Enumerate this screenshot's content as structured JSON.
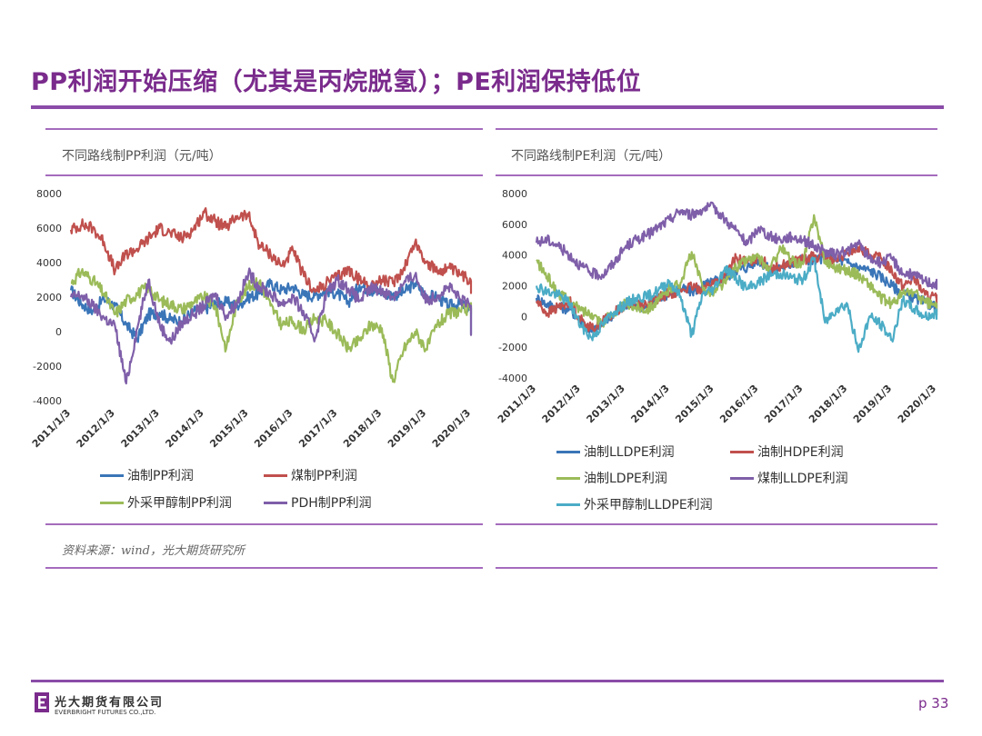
{
  "page": {
    "title": "PP利润开始压缩（尤其是丙烷脱氢）；PE利润保持低位",
    "source": "资料来源：wind，光大期货研究所",
    "page_number": "p 33",
    "company_cn": "光大期货有限公司",
    "company_en": "EVERBRIGHT FUTURES CO.,LTD.",
    "accent_color": "#7a2b8c"
  },
  "chart_data": [
    {
      "type": "line",
      "title": "不同路线制PP利润（元/吨）",
      "ylim": [
        -4000,
        8000
      ],
      "yticks": [
        -4000,
        -2000,
        0,
        2000,
        4000,
        6000,
        8000
      ],
      "xlim": [
        "2011/1/3",
        "2020/1/3"
      ],
      "xticks": [
        "2011/1/3",
        "2012/1/3",
        "2013/1/3",
        "2014/1/3",
        "2015/1/3",
        "2016/1/3",
        "2017/1/3",
        "2018/1/3",
        "2019/1/3",
        "2020/1/3"
      ],
      "legend_position": "bottom",
      "series": [
        {
          "name": "油制PP利润",
          "color": "#3a75b8",
          "x": [
            "2011/1/3",
            "2011/4/1",
            "2011/7/1",
            "2011/10/1",
            "2012/1/1",
            "2012/4/1",
            "2012/7/1",
            "2012/10/1",
            "2013/1/1",
            "2013/4/1",
            "2013/7/1",
            "2013/10/1",
            "2014/1/1",
            "2014/4/1",
            "2014/7/1",
            "2014/10/1",
            "2015/1/1",
            "2015/4/1",
            "2015/7/1",
            "2015/10/1",
            "2016/1/1",
            "2016/4/1",
            "2016/7/1",
            "2016/10/1",
            "2017/1/1",
            "2017/4/1",
            "2017/7/1",
            "2017/10/1",
            "2018/1/1",
            "2018/4/1",
            "2018/7/1",
            "2018/10/1",
            "2019/1/1",
            "2019/4/1",
            "2019/7/1",
            "2019/10/1",
            "2020/1/1",
            "2020/2/1"
          ],
          "values": [
            2400,
            1600,
            1200,
            1900,
            1500,
            400,
            -400,
            1000,
            1100,
            700,
            600,
            1200,
            1300,
            1600,
            1700,
            1500,
            2000,
            2200,
            2800,
            2400,
            2600,
            2100,
            2100,
            2400,
            2200,
            1700,
            2700,
            2400,
            2300,
            2100,
            2300,
            2800,
            2100,
            2000,
            1500,
            1600,
            1400,
            -100
          ]
        },
        {
          "name": "煤制PP利润",
          "color": "#c0504d",
          "x": [
            "2011/1/3",
            "2011/4/1",
            "2011/7/1",
            "2011/10/1",
            "2012/1/1",
            "2012/4/1",
            "2012/7/1",
            "2012/10/1",
            "2013/1/1",
            "2013/4/1",
            "2013/7/1",
            "2013/10/1",
            "2014/1/1",
            "2014/4/1",
            "2014/7/1",
            "2014/10/1",
            "2015/1/1",
            "2015/4/1",
            "2015/7/1",
            "2015/10/1",
            "2016/1/1",
            "2016/4/1",
            "2016/7/1",
            "2016/10/1",
            "2017/1/1",
            "2017/4/1",
            "2017/7/1",
            "2017/10/1",
            "2018/1/1",
            "2018/4/1",
            "2018/7/1",
            "2018/10/1",
            "2019/1/1",
            "2019/4/1",
            "2019/7/1",
            "2019/10/1",
            "2020/1/1",
            "2020/2/1"
          ],
          "values": [
            5900,
            6200,
            6000,
            5200,
            3500,
            4500,
            4800,
            5400,
            6000,
            5700,
            5400,
            5900,
            6900,
            6400,
            6000,
            6700,
            6700,
            5000,
            4500,
            3800,
            4700,
            3200,
            2300,
            2800,
            3200,
            3600,
            3000,
            2700,
            3000,
            2800,
            3700,
            5200,
            4000,
            3500,
            3700,
            3300,
            3000,
            2400
          ]
        },
        {
          "name": "外采甲醇制PP利润",
          "color": "#9bbb59",
          "x": [
            "2011/1/3",
            "2011/4/1",
            "2011/7/1",
            "2011/10/1",
            "2012/1/1",
            "2012/4/1",
            "2012/7/1",
            "2012/10/1",
            "2013/1/1",
            "2013/4/1",
            "2013/7/1",
            "2013/10/1",
            "2014/1/1",
            "2014/4/1",
            "2014/7/1",
            "2014/10/1",
            "2015/1/1",
            "2015/4/1",
            "2015/7/1",
            "2015/10/1",
            "2016/1/1",
            "2016/4/1",
            "2016/7/1",
            "2016/10/1",
            "2017/1/1",
            "2017/4/1",
            "2017/7/1",
            "2017/10/1",
            "2018/1/1",
            "2018/4/1",
            "2018/7/1",
            "2018/10/1",
            "2019/1/1",
            "2019/4/1",
            "2019/7/1",
            "2019/10/1",
            "2020/1/1",
            "2020/2/1"
          ],
          "values": [
            2800,
            3500,
            3000,
            2200,
            1000,
            1800,
            2200,
            2600,
            1800,
            1600,
            1300,
            1700,
            2000,
            1500,
            -1000,
            1800,
            2600,
            2900,
            1500,
            400,
            600,
            100,
            800,
            600,
            -100,
            -1000,
            -500,
            400,
            200,
            -2900,
            -1000,
            0,
            -1000,
            400,
            1000,
            1200,
            1300,
            1400
          ]
        },
        {
          "name": "PDH制PP利润",
          "color": "#7f5fa9",
          "x": [
            "2011/1/3",
            "2011/4/1",
            "2011/7/1",
            "2011/10/1",
            "2012/1/1",
            "2012/4/1",
            "2012/7/1",
            "2012/10/1",
            "2013/1/1",
            "2013/4/1",
            "2013/7/1",
            "2013/10/1",
            "2014/1/1",
            "2014/4/1",
            "2014/7/1",
            "2014/10/1",
            "2015/1/1",
            "2015/4/1",
            "2015/7/1",
            "2015/10/1",
            "2016/1/1",
            "2016/4/1",
            "2016/7/1",
            "2016/10/1",
            "2017/1/1",
            "2017/4/1",
            "2017/7/1",
            "2017/10/1",
            "2018/1/1",
            "2018/4/1",
            "2018/7/1",
            "2018/10/1",
            "2019/1/1",
            "2019/4/1",
            "2019/7/1",
            "2019/10/1",
            "2020/1/1",
            "2020/2/1"
          ],
          "values": [
            2000,
            2100,
            1500,
            800,
            300,
            -3000,
            200,
            3000,
            400,
            -600,
            500,
            1000,
            1500,
            2200,
            900,
            1700,
            3400,
            2600,
            2200,
            1600,
            2000,
            1000,
            -400,
            2200,
            3000,
            2500,
            1800,
            2500,
            2400,
            2000,
            2800,
            3300,
            1800,
            2100,
            2600,
            1900,
            1500,
            -200
          ]
        }
      ]
    },
    {
      "type": "line",
      "title": "不同路线制PE利润（元/吨）",
      "ylim": [
        -4000,
        8000
      ],
      "yticks": [
        -4000,
        -2000,
        0,
        2000,
        4000,
        6000,
        8000
      ],
      "xlim": [
        "2011/1/3",
        "2020/1/3"
      ],
      "xticks": [
        "2011/1/3",
        "2012/1/3",
        "2013/1/3",
        "2014/1/3",
        "2015/1/3",
        "2016/1/3",
        "2017/1/3",
        "2018/1/3",
        "2019/1/3",
        "2020/1/3"
      ],
      "legend_position": "bottom",
      "series": [
        {
          "name": "油制LLDPE利润",
          "color": "#3a75b8",
          "x": [
            "2011/1/3",
            "2011/4/1",
            "2011/7/1",
            "2011/10/1",
            "2012/1/1",
            "2012/4/1",
            "2012/7/1",
            "2012/10/1",
            "2013/1/1",
            "2013/4/1",
            "2013/7/1",
            "2013/10/1",
            "2014/1/1",
            "2014/4/1",
            "2014/7/1",
            "2014/10/1",
            "2015/1/1",
            "2015/4/1",
            "2015/7/1",
            "2015/10/1",
            "2016/1/1",
            "2016/4/1",
            "2016/7/1",
            "2016/10/1",
            "2017/1/1",
            "2017/4/1",
            "2017/7/1",
            "2017/10/1",
            "2018/1/1",
            "2018/4/1",
            "2018/7/1",
            "2018/10/1",
            "2019/1/1",
            "2019/4/1",
            "2019/7/1",
            "2019/10/1",
            "2020/1/1",
            "2020/2/1"
          ],
          "values": [
            1200,
            800,
            600,
            500,
            -300,
            -1000,
            -400,
            200,
            600,
            800,
            600,
            1200,
            1500,
            1800,
            1600,
            2000,
            2300,
            2500,
            3000,
            3200,
            3700,
            3000,
            3200,
            3400,
            3800,
            3600,
            3900,
            3700,
            3500,
            3200,
            3000,
            2600,
            2000,
            1500,
            1200,
            900,
            600,
            200
          ]
        },
        {
          "name": "油制HDPE利润",
          "color": "#c0504d",
          "x": [
            "2011/1/3",
            "2011/4/1",
            "2011/7/1",
            "2011/10/1",
            "2012/1/1",
            "2012/4/1",
            "2012/7/1",
            "2012/10/1",
            "2013/1/1",
            "2013/4/1",
            "2013/7/1",
            "2013/10/1",
            "2014/1/1",
            "2014/4/1",
            "2014/7/1",
            "2014/10/1",
            "2015/1/1",
            "2015/4/1",
            "2015/7/1",
            "2015/10/1",
            "2016/1/1",
            "2016/4/1",
            "2016/7/1",
            "2016/10/1",
            "2017/1/1",
            "2017/4/1",
            "2017/7/1",
            "2017/10/1",
            "2018/1/1",
            "2018/4/1",
            "2018/7/1",
            "2018/10/1",
            "2019/1/1",
            "2019/4/1",
            "2019/7/1",
            "2019/10/1",
            "2020/1/1",
            "2020/2/1"
          ],
          "values": [
            1000,
            200,
            600,
            1000,
            -200,
            -800,
            -300,
            200,
            800,
            1000,
            700,
            1200,
            1500,
            1700,
            1900,
            1800,
            2200,
            2700,
            3800,
            3500,
            3900,
            3200,
            3300,
            3500,
            3700,
            3900,
            3800,
            3600,
            4100,
            4500,
            4000,
            3800,
            3000,
            2000,
            2500,
            1400,
            1200,
            600
          ]
        },
        {
          "name": "油制LDPE利润",
          "color": "#9bbb59",
          "x": [
            "2011/1/3",
            "2011/4/1",
            "2011/7/1",
            "2011/10/1",
            "2012/1/1",
            "2012/4/1",
            "2012/7/1",
            "2012/10/1",
            "2013/1/1",
            "2013/4/1",
            "2013/7/1",
            "2013/10/1",
            "2014/1/1",
            "2014/4/1",
            "2014/7/1",
            "2014/10/1",
            "2015/1/1",
            "2015/4/1",
            "2015/7/1",
            "2015/10/1",
            "2016/1/1",
            "2016/4/1",
            "2016/7/1",
            "2016/10/1",
            "2017/1/1",
            "2017/4/1",
            "2017/7/1",
            "2017/10/1",
            "2018/1/1",
            "2018/4/1",
            "2018/7/1",
            "2018/10/1",
            "2019/1/1",
            "2019/4/1",
            "2019/7/1",
            "2019/10/1",
            "2020/1/1",
            "2020/2/1"
          ],
          "values": [
            3600,
            2600,
            1500,
            1000,
            400,
            200,
            -400,
            300,
            800,
            600,
            500,
            1000,
            1800,
            2200,
            4200,
            1800,
            1600,
            2200,
            3200,
            3700,
            3800,
            3000,
            4500,
            3600,
            3400,
            6600,
            3600,
            3200,
            3000,
            2700,
            2100,
            1200,
            800,
            1500,
            1600,
            900,
            700,
            300
          ]
        },
        {
          "name": "煤制LLDPE利润",
          "color": "#7f5fa9",
          "x": [
            "2011/1/3",
            "2011/4/1",
            "2011/7/1",
            "2011/10/1",
            "2012/1/1",
            "2012/4/1",
            "2012/7/1",
            "2012/10/1",
            "2013/1/1",
            "2013/4/1",
            "2013/7/1",
            "2013/10/1",
            "2014/1/1",
            "2014/4/1",
            "2014/7/1",
            "2014/10/1",
            "2015/1/1",
            "2015/4/1",
            "2015/7/1",
            "2015/10/1",
            "2016/1/1",
            "2016/4/1",
            "2016/7/1",
            "2016/10/1",
            "2017/1/1",
            "2017/4/1",
            "2017/7/1",
            "2017/10/1",
            "2018/1/1",
            "2018/4/1",
            "2018/7/1",
            "2018/10/1",
            "2019/1/1",
            "2019/4/1",
            "2019/7/1",
            "2019/10/1",
            "2020/1/1",
            "2020/2/1"
          ],
          "values": [
            4800,
            5000,
            4600,
            4000,
            3300,
            2800,
            2700,
            3500,
            4500,
            5000,
            5300,
            5800,
            6300,
            6900,
            6600,
            7000,
            7100,
            6300,
            5600,
            4700,
            5800,
            5200,
            5000,
            5200,
            5000,
            4600,
            4200,
            4000,
            4300,
            4700,
            3800,
            3500,
            3800,
            2800,
            2700,
            2300,
            2100,
            2000
          ]
        },
        {
          "name": "外采甲醇制LLDPE利润",
          "color": "#4bacc6",
          "x": [
            "2011/1/3",
            "2011/4/1",
            "2011/7/1",
            "2011/10/1",
            "2012/1/1",
            "2012/4/1",
            "2012/7/1",
            "2012/10/1",
            "2013/1/1",
            "2013/4/1",
            "2013/7/1",
            "2013/10/1",
            "2014/1/1",
            "2014/4/1",
            "2014/7/1",
            "2014/10/1",
            "2015/1/1",
            "2015/4/1",
            "2015/7/1",
            "2015/10/1",
            "2016/1/1",
            "2016/4/1",
            "2016/7/1",
            "2016/10/1",
            "2017/1/1",
            "2017/4/1",
            "2017/7/1",
            "2017/10/1",
            "2018/1/1",
            "2018/4/1",
            "2018/7/1",
            "2018/10/1",
            "2019/1/1",
            "2019/4/1",
            "2019/7/1",
            "2019/10/1",
            "2020/1/1",
            "2020/2/1"
          ],
          "values": [
            2000,
            1600,
            1400,
            900,
            -600,
            -1400,
            -500,
            300,
            800,
            1200,
            1300,
            1700,
            2300,
            1300,
            -1200,
            1500,
            1800,
            3200,
            2500,
            1800,
            2200,
            2700,
            2800,
            2500,
            2400,
            3800,
            -400,
            500,
            800,
            -2300,
            0,
            -500,
            -1500,
            1000,
            500,
            0,
            200,
            100
          ]
        }
      ]
    }
  ]
}
